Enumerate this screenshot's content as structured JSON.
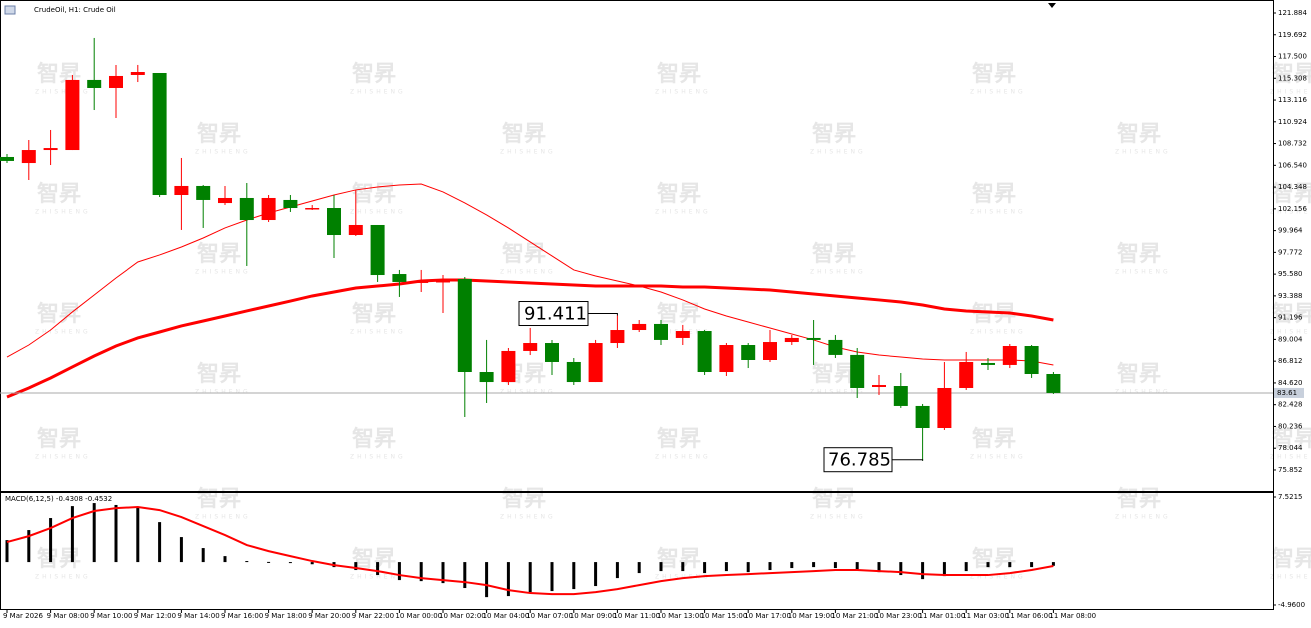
{
  "watermark": "智昇",
  "watermark_sub": "ZHISHENG",
  "chart_data": [
    {
      "type": "candlestick",
      "title": "CrudeOil, H1:  Crude Oil",
      "categories": [
        "9 Mar 2026",
        null,
        "9 Mar 08:00",
        null,
        "9 Mar 10:00",
        null,
        "9 Mar 12:00",
        null,
        "9 Mar 14:00",
        null,
        "9 Mar 16:00",
        null,
        "9 Mar 18:00",
        null,
        "9 Mar 20:00",
        null,
        "9 Mar 22:00",
        null,
        "10 Mar 00:00",
        null,
        "10 Mar 02:00",
        null,
        "10 Mar 04:00",
        null,
        "10 Mar 07:00",
        null,
        "10 Mar 09:00",
        null,
        "10 Mar 11:00",
        null,
        "10 Mar 13:00",
        null,
        "10 Mar 15:00",
        null,
        "10 Mar 17:00",
        null,
        "10 Mar 19:00",
        null,
        "10 Mar 21:00",
        null,
        "10 Mar 23:00",
        null,
        "11 Mar 01:00",
        null,
        "11 Mar 03:00",
        null,
        "11 Mar 06:00",
        null,
        "11 Mar 08:00"
      ],
      "open": [
        107.38,
        106.77,
        108.08,
        108.08,
        115.14,
        114.33,
        115.64,
        115.84,
        103.55,
        104.46,
        102.74,
        103.25,
        101.03,
        103.05,
        102.14,
        102.24,
        99.52,
        100.53,
        95.59,
        94.69,
        94.79,
        95.09,
        85.72,
        84.71,
        87.84,
        88.64,
        86.73,
        84.71,
        88.64,
        89.95,
        90.56,
        89.15,
        89.85,
        85.72,
        88.44,
        86.93,
        88.74,
        89.15,
        88.95,
        87.44,
        84.21,
        84.31,
        82.3,
        80.08,
        84.11,
        86.63,
        86.43,
        88.34,
        85.52
      ],
      "high": [
        107.68,
        109.09,
        110.1,
        115.64,
        119.37,
        116.65,
        116.65,
        115.84,
        107.28,
        104.56,
        104.46,
        104.76,
        103.55,
        103.55,
        102.54,
        103.55,
        104.06,
        100.53,
        96.0,
        96.0,
        95.49,
        95.29,
        88.95,
        88.14,
        90.16,
        88.95,
        87.13,
        88.95,
        91.411,
        90.96,
        90.96,
        90.46,
        89.95,
        88.64,
        88.64,
        89.95,
        89.45,
        90.96,
        89.45,
        88.14,
        85.42,
        85.62,
        82.5,
        86.73,
        87.74,
        87.13,
        88.54,
        88.44,
        85.72
      ],
      "low": [
        106.77,
        105.06,
        106.57,
        108.08,
        112.11,
        111.31,
        114.93,
        103.35,
        100.03,
        100.23,
        102.54,
        96.4,
        100.83,
        101.84,
        102.04,
        97.21,
        99.42,
        94.79,
        93.28,
        93.78,
        91.66,
        81.19,
        82.6,
        84.41,
        87.43,
        85.42,
        84.41,
        84.71,
        88.14,
        89.75,
        88.44,
        88.44,
        85.42,
        85.32,
        86.12,
        86.73,
        88.44,
        86.43,
        87.13,
        83.1,
        83.4,
        82.1,
        76.785,
        79.88,
        83.91,
        85.92,
        86.12,
        85.12,
        83.51
      ],
      "close": [
        106.98,
        108.08,
        108.28,
        115.14,
        114.33,
        115.54,
        115.94,
        103.55,
        104.46,
        103.05,
        103.25,
        101.03,
        103.25,
        102.24,
        102.24,
        99.52,
        100.53,
        95.49,
        94.79,
        94.89,
        94.89,
        85.72,
        84.71,
        87.84,
        88.64,
        86.73,
        84.71,
        88.64,
        89.95,
        90.56,
        88.95,
        89.85,
        85.72,
        88.44,
        86.93,
        88.74,
        89.15,
        88.95,
        87.44,
        84.11,
        84.41,
        82.3,
        80.08,
        84.11,
        86.73,
        86.43,
        88.34,
        85.52,
        83.61
      ],
      "up_color": "#ff0000",
      "down_color": "#008000",
      "lines": [
        {
          "color": "#ff0000",
          "width": 1,
          "values": [
            87.23,
            88.44,
            89.95,
            91.77,
            93.48,
            95.19,
            96.8,
            97.51,
            98.31,
            99.22,
            100.23,
            101.03,
            101.74,
            102.34,
            102.95,
            103.55,
            104.06,
            104.36,
            104.56,
            104.66,
            103.86,
            102.75,
            101.54,
            100.23,
            98.82,
            97.41,
            96.0,
            95.39,
            94.89,
            94.38,
            93.78,
            92.98,
            92.07,
            91.36,
            90.76,
            90.15,
            89.55,
            88.95,
            88.24,
            87.74,
            87.43,
            87.23,
            87.03,
            86.93,
            86.93,
            86.93,
            86.93,
            86.83,
            86.43
          ]
        },
        {
          "color": "#ff0000",
          "width": 3,
          "values": [
            83.2,
            84.11,
            85.12,
            86.23,
            87.33,
            88.34,
            89.15,
            89.75,
            90.36,
            90.86,
            91.36,
            91.87,
            92.37,
            92.87,
            93.38,
            93.78,
            94.18,
            94.38,
            94.59,
            94.89,
            94.99,
            94.99,
            94.89,
            94.79,
            94.69,
            94.59,
            94.49,
            94.38,
            94.38,
            94.38,
            94.38,
            94.28,
            94.28,
            94.18,
            94.08,
            93.98,
            93.78,
            93.58,
            93.38,
            93.18,
            92.98,
            92.77,
            92.47,
            92.07,
            91.87,
            91.77,
            91.66,
            91.36,
            90.96
          ]
        }
      ],
      "ylim": [
        73.633,
        123.193
      ],
      "yticks": [
        121.884,
        119.692,
        {
          "value": 117.5,
          "label": "117.500"
        },
        115.308,
        113.116,
        110.924,
        108.732,
        {
          "value": 106.54,
          "label": "106.540"
        },
        104.348,
        102.156,
        99.964,
        97.772,
        {
          "value": 95.58,
          "label": "95.580"
        },
        93.388,
        91.196,
        89.004,
        86.812,
        {
          "value": 84.62,
          "label": "84.620"
        },
        82.428,
        80.236,
        78.044,
        75.852
      ]
    },
    {
      "type": "macd",
      "title": "MACD(6,12,5) -0.4308 -0.4532",
      "histogram": [
        2.54,
        3.7,
        5.09,
        6.47,
        6.82,
        6.6,
        6.36,
        4.62,
        2.89,
        1.62,
        0.69,
        0.12,
        0.02,
        -0.1,
        -0.25,
        -0.58,
        -0.92,
        -1.5,
        -2.08,
        -2.2,
        -2.43,
        -3.0,
        -4.05,
        -3.93,
        -3.47,
        -3.35,
        -3.12,
        -2.77,
        -1.85,
        -1.27,
        -1.04,
        -1.04,
        -1.27,
        -1.04,
        -1.16,
        -0.92,
        -0.69,
        -0.58,
        -0.69,
        -0.92,
        -1.16,
        -1.5,
        -1.97,
        -1.62,
        -1.04,
        -0.58,
        -0.58,
        -0.58,
        -0.4308
      ],
      "histogram_color": "#000000",
      "signal": [
        2.31,
        3.0,
        3.93,
        5.09,
        5.9,
        6.24,
        6.36,
        6.01,
        5.2,
        4.16,
        3.12,
        1.97,
        1.27,
        0.69,
        0.12,
        -0.35,
        -0.69,
        -1.04,
        -1.5,
        -1.85,
        -2.08,
        -2.31,
        -2.66,
        -3.24,
        -3.58,
        -3.7,
        -3.7,
        -3.47,
        -3.12,
        -2.66,
        -2.2,
        -1.85,
        -1.62,
        -1.5,
        -1.39,
        -1.27,
        -1.16,
        -1.04,
        -0.92,
        -0.92,
        -1.04,
        -1.16,
        -1.39,
        -1.5,
        -1.5,
        -1.5,
        -1.27,
        -0.92,
        -0.4532
      ],
      "signal_color": "#ff0000",
      "ylim": [
        -5.538,
        7.984
      ],
      "yticks": [
        {
          "value": 7.5215,
          "label": "7.5215"
        },
        {
          "value": -4.96,
          "label": "-4.9600"
        }
      ]
    }
  ]
}
